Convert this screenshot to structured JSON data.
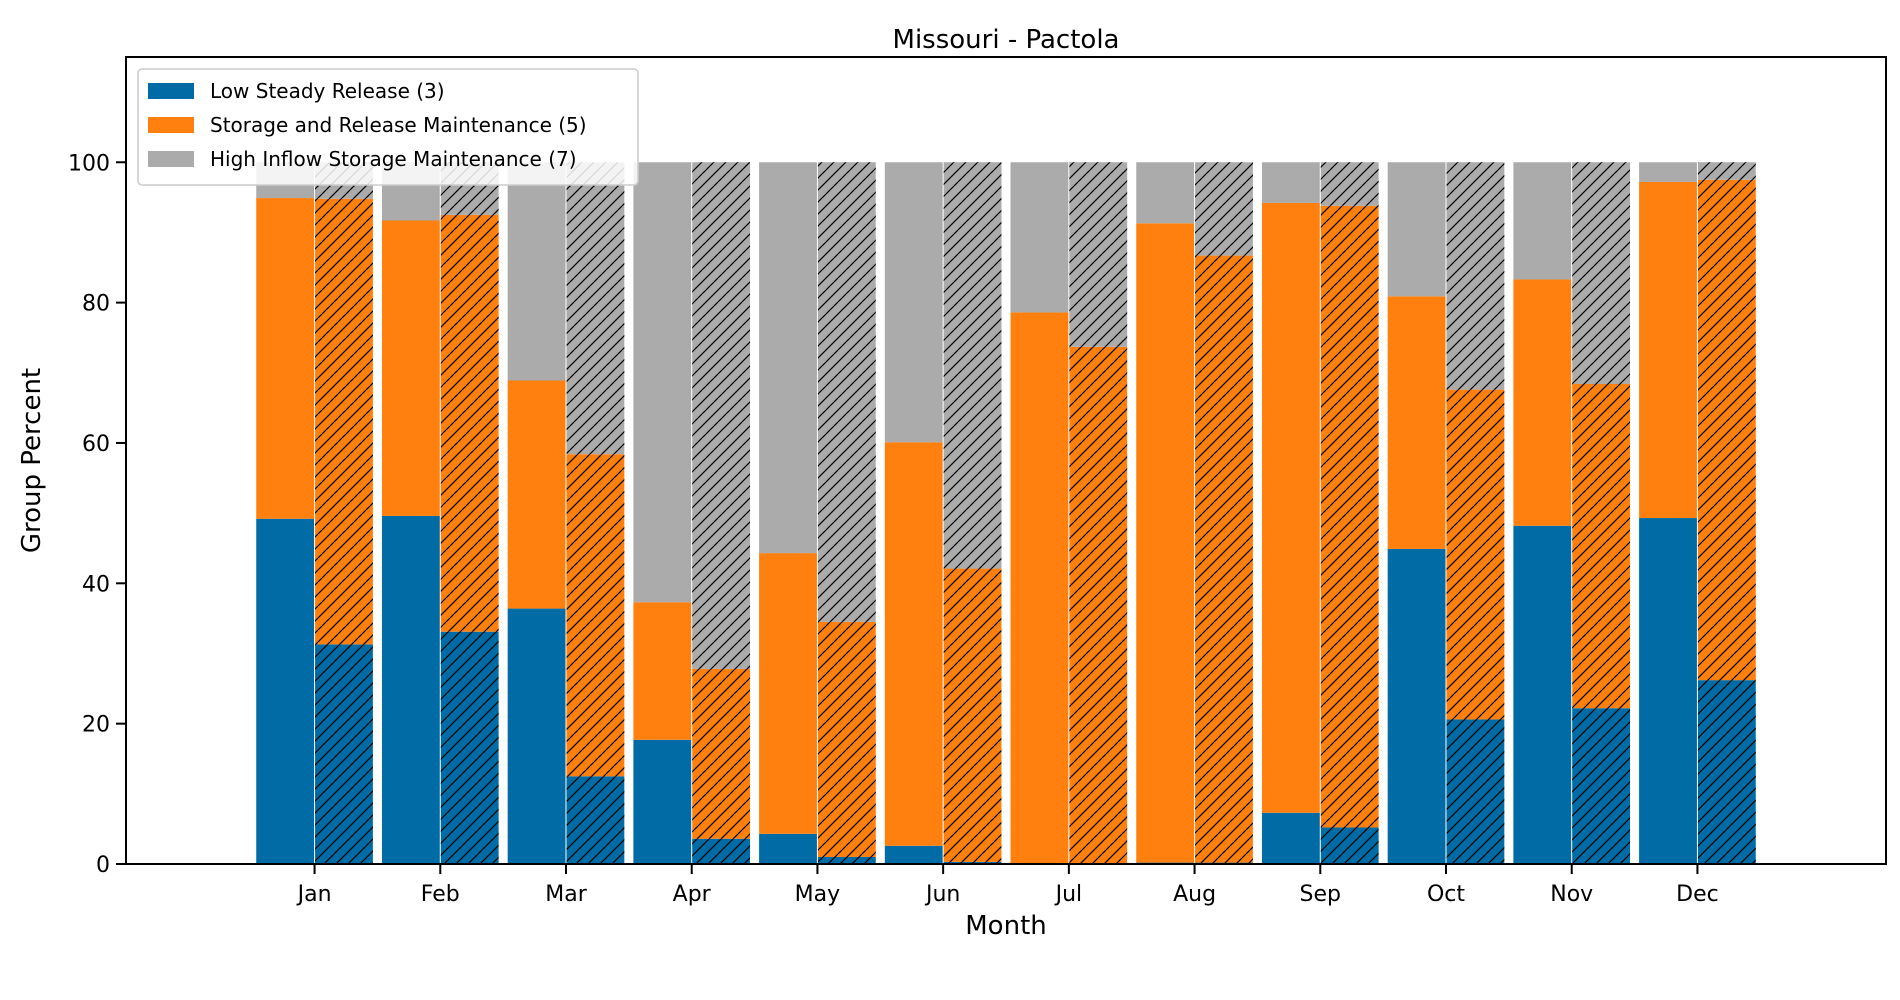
{
  "chart_data": {
    "type": "bar",
    "stacked": true,
    "grouped": true,
    "title": "Missouri - Pactola",
    "xlabel": "Month",
    "ylabel": "Group Percent",
    "ylim": [
      0,
      115
    ],
    "yticks": [
      0,
      20,
      40,
      60,
      80,
      100
    ],
    "grid": false,
    "legend_position": "top-left",
    "categories": [
      "Jan",
      "Feb",
      "Mar",
      "Apr",
      "May",
      "Jun",
      "Jul",
      "Aug",
      "Sep",
      "Oct",
      "Nov",
      "Dec"
    ],
    "bar_groups": [
      {
        "hatched": false,
        "series": [
          {
            "name": "Low Steady Release (3)",
            "color": "#006ba4",
            "values": [
              49.2,
              49.6,
              36.4,
              17.7,
              4.3,
              2.6,
              0.0,
              0.2,
              7.3,
              44.9,
              48.2,
              49.3
            ]
          },
          {
            "name": "Storage and Release Maintenance (5)",
            "color": "#ff800e",
            "values": [
              45.7,
              42.1,
              32.5,
              19.6,
              40.0,
              57.5,
              78.6,
              91.1,
              86.9,
              36.0,
              35.1,
              47.9
            ]
          },
          {
            "name": "High Inflow Storage Maintenance (7)",
            "color": "#ababab",
            "values": [
              5.1,
              8.3,
              31.1,
              62.7,
              55.7,
              39.9,
              21.4,
              8.7,
              5.8,
              19.1,
              16.7,
              2.8
            ]
          }
        ]
      },
      {
        "hatched": true,
        "series": [
          {
            "name": "Low Steady Release (3)",
            "color": "#006ba4",
            "values": [
              31.3,
              33.1,
              12.5,
              3.6,
              1.0,
              0.3,
              0.0,
              0.2,
              5.2,
              20.6,
              22.2,
              26.2
            ]
          },
          {
            "name": "Storage and Release Maintenance (5)",
            "color": "#ff800e",
            "values": [
              63.5,
              59.4,
              45.9,
              24.2,
              33.5,
              41.8,
              73.7,
              86.5,
              88.6,
              47.0,
              46.2,
              71.3
            ]
          },
          {
            "name": "High Inflow Storage Maintenance (7)",
            "color": "#ababab",
            "values": [
              5.2,
              7.5,
              41.6,
              72.2,
              65.5,
              57.9,
              26.3,
              13.3,
              6.2,
              32.4,
              31.6,
              2.5
            ]
          }
        ]
      }
    ],
    "legend": [
      {
        "label": "Low Steady Release (3)",
        "color": "#006ba4"
      },
      {
        "label": "Storage and Release Maintenance (5)",
        "color": "#ff800e"
      },
      {
        "label": "High Inflow Storage Maintenance (7)",
        "color": "#ababab"
      }
    ]
  }
}
